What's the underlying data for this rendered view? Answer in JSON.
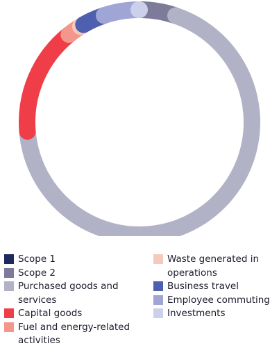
{
  "chart_data": {
    "type": "pie",
    "donut": true,
    "labels": [
      "Scope 1",
      "Scope 2",
      "Purchased goods and services",
      "Capital goods",
      "Fuel and energy-related activities",
      "Waste generated in operations",
      "Business travel",
      "Employee commuting",
      "Investments"
    ],
    "values": [
      0.4,
      4.8,
      68.5,
      15.5,
      2.0,
      0.5,
      3.2,
      5.0,
      0.1
    ],
    "draw_order": [
      "Scope 1",
      "Scope 2",
      "Purchased goods and services",
      "Capital goods",
      "Fuel and energy-related activities",
      "Waste generated in operations",
      "Business travel",
      "Employee commuting",
      "Investments"
    ],
    "colors": {
      "Scope 1": "#1c2a5e",
      "Scope 2": "#7d7b99",
      "Purchased goods and services": "#b2b2c6",
      "Capital goods": "#ef3e48",
      "Fuel and energy-related activities": "#f4968a",
      "Waste generated in operations": "#f6c9bd",
      "Business travel": "#4f5fb0",
      "Employee commuting": "#9fa6d6",
      "Investments": "#ccd0ea"
    },
    "legend_placement": "bottom",
    "title": "",
    "xlabel": "",
    "ylabel": ""
  },
  "legend": {
    "left": [
      {
        "label": "Scope 1",
        "color": "#1c2a5e"
      },
      {
        "label": "Scope 2",
        "color": "#7d7b99"
      },
      {
        "label": "Purchased goods and services",
        "color": "#b2b2c6"
      },
      {
        "label": "Capital goods",
        "color": "#ef3e48"
      },
      {
        "label": "Fuel and energy-related activities",
        "color": "#f4968a"
      }
    ],
    "right": [
      {
        "label": "Waste generated in operations",
        "color": "#f6c9bd"
      },
      {
        "label": "Business travel",
        "color": "#4f5fb0"
      },
      {
        "label": "Employee commuting",
        "color": "#9fa6d6"
      },
      {
        "label": "Investments",
        "color": "#ccd0ea"
      }
    ]
  }
}
